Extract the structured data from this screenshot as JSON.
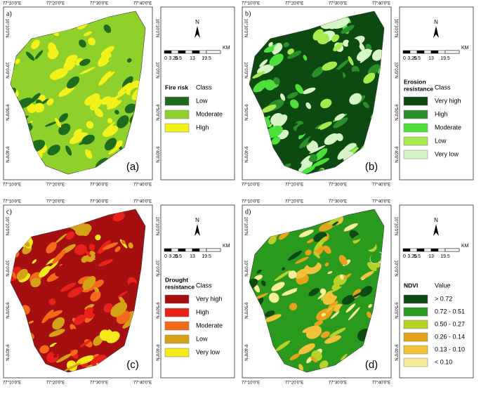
{
  "figure": {
    "north": "N",
    "scale": {
      "labels": [
        "0",
        "3.25",
        "6.5",
        "13",
        "19.5"
      ],
      "unit": "KM"
    },
    "lon_labels": [
      "77°10'0\"E",
      "77°20'0\"E",
      "77°30'0\"E",
      "77°40'0\"E"
    ],
    "lat_labels": [
      "10°10'0\"N",
      "10°0'0\"N",
      "9°50'0\"N",
      "9°40'0\"N"
    ],
    "panels": [
      {
        "tag": "a)",
        "label": "(a)",
        "legend": {
          "title": [
            "Fire risk"
          ],
          "header": "Class",
          "items": [
            {
              "label": "Low",
              "color": "#1e6b1e"
            },
            {
              "label": "Moderate",
              "color": "#8fd12a"
            },
            {
              "label": "High",
              "color": "#f2f21a"
            }
          ]
        }
      },
      {
        "tag": "b)",
        "label": "(b)",
        "legend": {
          "title": [
            "Erosion",
            "resistance"
          ],
          "header": "Class",
          "items": [
            {
              "label": "Very high",
              "color": "#0d4a12"
            },
            {
              "label": "High",
              "color": "#2a8f2a"
            },
            {
              "label": "Moderate",
              "color": "#4de03a"
            },
            {
              "label": "Low",
              "color": "#a6ea4e"
            },
            {
              "label": "Very low",
              "color": "#d8f5c8"
            }
          ]
        }
      },
      {
        "tag": "c)",
        "label": "(c)",
        "legend": {
          "title": [
            "Drought",
            "resistance"
          ],
          "header": "Class",
          "items": [
            {
              "label": "Very high",
              "color": "#a50f0f"
            },
            {
              "label": "High",
              "color": "#e8221a"
            },
            {
              "label": "Moderate",
              "color": "#f26a1a"
            },
            {
              "label": "Low",
              "color": "#d4a217"
            },
            {
              "label": "Very low",
              "color": "#f5ea1a"
            }
          ]
        }
      },
      {
        "tag": "d)",
        "label": "(d)",
        "legend": {
          "title": [
            "NDVI"
          ],
          "header": "Value",
          "items": [
            {
              "label": "> 0.72",
              "color": "#0d4a12"
            },
            {
              "label": "0.72 - 0.51",
              "color": "#2a9a1e"
            },
            {
              "label": "0.50 - 0.27",
              "color": "#b8d22a"
            },
            {
              "label": "0.26 - 0.14",
              "color": "#e8a21a"
            },
            {
              "label": "0.13 - 0.10",
              "color": "#f2c23a"
            },
            {
              "label": "< 0.10",
              "color": "#f7ee9a"
            }
          ]
        }
      }
    ]
  }
}
